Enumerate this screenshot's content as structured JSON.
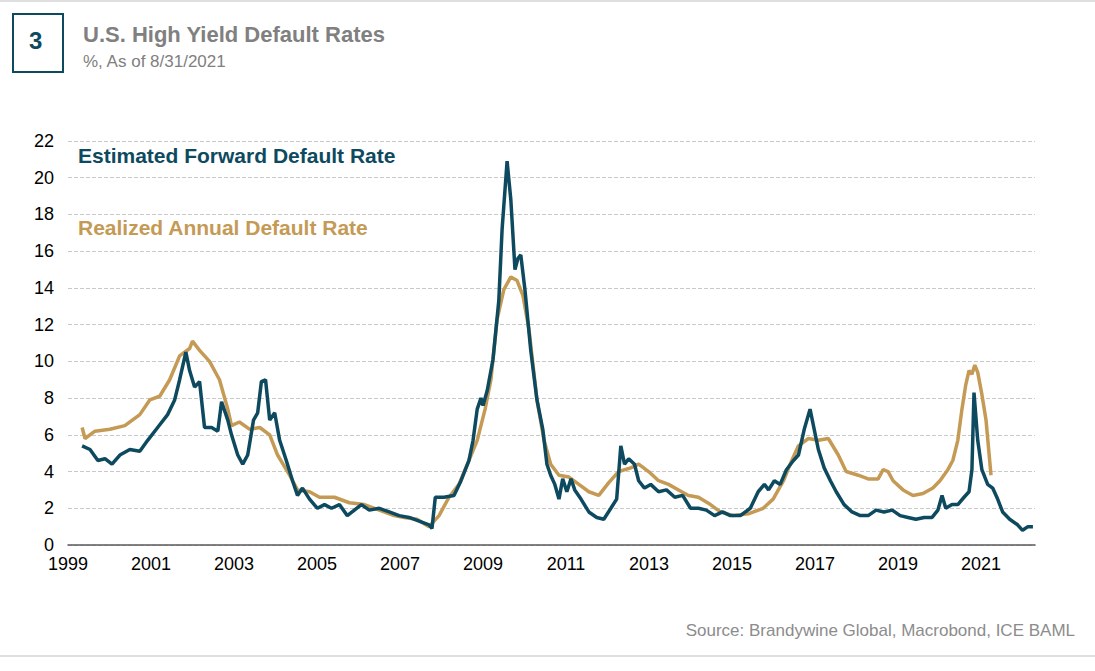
{
  "chart_data": {
    "type": "line",
    "badge": "3",
    "title": "U.S. High Yield Default Rates",
    "subtitle": "%, As of 8/31/2021",
    "source": "Source: Brandywine Global, Macrobond, ICE BAML",
    "legend": "upper left",
    "grid": true,
    "xlim": [
      1999,
      2022.3
    ],
    "xticks": [
      1999,
      2001,
      2003,
      2005,
      2007,
      2009,
      2011,
      2013,
      2015,
      2017,
      2019,
      2021
    ],
    "ylim": [
      0,
      22
    ],
    "yticks": [
      0,
      2,
      4,
      6,
      8,
      10,
      12,
      14,
      16,
      18,
      20,
      22
    ],
    "series": [
      {
        "name": "Estimated Forward Default Rate",
        "color": "#0e4a5f",
        "x": [
          1999.34,
          1999.53,
          1999.72,
          1999.89,
          2000.06,
          2000.25,
          2000.49,
          2000.73,
          2000.92,
          2001.16,
          2001.4,
          2001.57,
          2001.69,
          2001.84,
          2001.93,
          2002.05,
          2002.17,
          2002.29,
          2002.46,
          2002.61,
          2002.7,
          2002.85,
          2002.94,
          2003.09,
          2003.21,
          2003.33,
          2003.47,
          2003.57,
          2003.66,
          2003.76,
          2003.86,
          2003.98,
          2004.1,
          2004.26,
          2004.41,
          2004.53,
          2004.65,
          2004.82,
          2005.01,
          2005.18,
          2005.35,
          2005.54,
          2005.73,
          2005.9,
          2006.07,
          2006.26,
          2006.5,
          2006.74,
          2006.98,
          2007.22,
          2007.46,
          2007.7,
          2007.77,
          2007.85,
          2008.06,
          2008.3,
          2008.47,
          2008.66,
          2008.76,
          2008.86,
          2008.95,
          2009.0,
          2009.1,
          2009.24,
          2009.38,
          2009.46,
          2009.58,
          2009.67,
          2009.77,
          2009.84,
          2009.91,
          2010.01,
          2010.15,
          2010.3,
          2010.44,
          2010.54,
          2010.63,
          2010.73,
          2010.83,
          2010.92,
          2011.02,
          2011.12,
          2011.21,
          2011.36,
          2011.55,
          2011.74,
          2011.91,
          2012.08,
          2012.22,
          2012.32,
          2012.41,
          2012.51,
          2012.65,
          2012.75,
          2012.89,
          2013.04,
          2013.23,
          2013.42,
          2013.62,
          2013.81,
          2014.0,
          2014.19,
          2014.38,
          2014.58,
          2014.77,
          2014.96,
          2015.2,
          2015.44,
          2015.63,
          2015.78,
          2015.88,
          2016.02,
          2016.16,
          2016.31,
          2016.48,
          2016.6,
          2016.74,
          2016.88,
          2016.98,
          2017.08,
          2017.22,
          2017.37,
          2017.51,
          2017.7,
          2017.89,
          2018.09,
          2018.28,
          2018.47,
          2018.66,
          2018.86,
          2019.05,
          2019.24,
          2019.43,
          2019.63,
          2019.82,
          2019.96,
          2020.06,
          2020.15,
          2020.3,
          2020.44,
          2020.59,
          2020.71,
          2020.78,
          2020.83,
          2020.92,
          2021.02,
          2021.16,
          2021.28,
          2021.4,
          2021.52,
          2021.69,
          2021.88,
          2022.0,
          2022.13,
          2022.25
        ],
        "values": [
          5.4,
          5.2,
          4.6,
          4.7,
          4.4,
          4.9,
          5.2,
          5.1,
          5.7,
          6.4,
          7.1,
          7.9,
          9.0,
          10.5,
          9.5,
          8.6,
          8.9,
          6.4,
          6.4,
          6.2,
          7.8,
          6.8,
          6.0,
          4.9,
          4.4,
          4.9,
          6.8,
          7.2,
          8.9,
          9.0,
          6.8,
          7.2,
          5.7,
          4.6,
          3.5,
          2.7,
          3.1,
          2.5,
          2.0,
          2.2,
          2.0,
          2.2,
          1.6,
          1.9,
          2.2,
          1.9,
          2.0,
          1.8,
          1.6,
          1.5,
          1.3,
          1.1,
          0.9,
          2.6,
          2.6,
          2.7,
          3.5,
          4.6,
          5.7,
          7.4,
          8.0,
          7.6,
          8.4,
          10.1,
          13.3,
          17.2,
          20.9,
          18.8,
          15.0,
          15.6,
          15.8,
          13.9,
          10.6,
          7.9,
          6.3,
          4.4,
          3.8,
          3.3,
          2.5,
          3.6,
          2.9,
          3.6,
          3.0,
          2.5,
          1.8,
          1.5,
          1.4,
          2.0,
          2.5,
          5.4,
          4.4,
          4.7,
          4.4,
          3.5,
          3.1,
          3.3,
          2.9,
          3.0,
          2.6,
          2.7,
          2.0,
          2.0,
          1.9,
          1.6,
          1.8,
          1.6,
          1.6,
          2.0,
          2.9,
          3.3,
          3.0,
          3.5,
          3.3,
          4.1,
          4.6,
          4.9,
          6.3,
          7.4,
          6.3,
          5.2,
          4.2,
          3.5,
          2.9,
          2.2,
          1.8,
          1.6,
          1.6,
          1.9,
          1.8,
          1.9,
          1.6,
          1.5,
          1.4,
          1.5,
          1.5,
          1.9,
          2.7,
          2.0,
          2.2,
          2.2,
          2.6,
          2.9,
          4.1,
          8.3,
          5.7,
          4.1,
          3.3,
          3.1,
          2.5,
          1.8,
          1.4,
          1.1,
          0.8,
          1.0,
          1.0
        ]
      },
      {
        "name": "Realized Annual Default Rate",
        "color": "#c49a54",
        "x": [
          1999.34,
          1999.41,
          1999.65,
          2000.01,
          2000.37,
          2000.73,
          2000.97,
          2001.21,
          2001.45,
          2001.69,
          2001.93,
          2002.0,
          2002.17,
          2002.41,
          2002.65,
          2002.85,
          2002.94,
          2003.13,
          2003.38,
          2003.62,
          2003.86,
          2004.05,
          2004.34,
          2004.53,
          2004.82,
          2005.06,
          2005.42,
          2005.78,
          2006.14,
          2006.5,
          2006.86,
          2007.1,
          2007.41,
          2007.7,
          2007.94,
          2008.18,
          2008.42,
          2008.66,
          2008.86,
          2009.05,
          2009.19,
          2009.34,
          2009.5,
          2009.67,
          2009.82,
          2009.96,
          2010.11,
          2010.3,
          2010.47,
          2010.63,
          2010.83,
          2011.07,
          2011.31,
          2011.55,
          2011.79,
          2012.03,
          2012.27,
          2012.56,
          2012.75,
          2012.99,
          2013.23,
          2013.47,
          2013.71,
          2013.95,
          2014.19,
          2014.48,
          2014.72,
          2015.03,
          2015.39,
          2015.75,
          2015.99,
          2016.24,
          2016.4,
          2016.6,
          2016.84,
          2017.08,
          2017.32,
          2017.56,
          2017.75,
          2018.04,
          2018.28,
          2018.52,
          2018.64,
          2018.76,
          2018.88,
          2019.12,
          2019.36,
          2019.6,
          2019.84,
          2020.01,
          2020.2,
          2020.32,
          2020.44,
          2020.54,
          2020.63,
          2020.71,
          2020.78,
          2020.85,
          2020.92,
          2021.02,
          2021.12,
          2021.24
        ],
        "values": [
          6.4,
          5.8,
          6.2,
          6.3,
          6.5,
          7.1,
          7.9,
          8.1,
          9.0,
          10.3,
          10.7,
          11.1,
          10.6,
          10.0,
          9.0,
          7.4,
          6.5,
          6.7,
          6.3,
          6.4,
          6.0,
          4.9,
          3.8,
          3.0,
          2.9,
          2.6,
          2.6,
          2.3,
          2.2,
          1.9,
          1.6,
          1.5,
          1.4,
          1.0,
          1.6,
          2.6,
          3.3,
          4.6,
          5.7,
          7.4,
          9.0,
          12.3,
          13.9,
          14.6,
          14.4,
          13.6,
          11.7,
          7.9,
          5.7,
          4.4,
          3.8,
          3.7,
          3.3,
          2.9,
          2.7,
          3.4,
          4.0,
          4.2,
          4.4,
          4.0,
          3.5,
          3.3,
          3.0,
          2.7,
          2.6,
          2.2,
          1.8,
          1.6,
          1.7,
          2.0,
          2.5,
          3.5,
          4.4,
          5.4,
          5.8,
          5.7,
          5.8,
          4.9,
          4.0,
          3.8,
          3.6,
          3.6,
          4.1,
          4.0,
          3.5,
          3.0,
          2.7,
          2.8,
          3.1,
          3.5,
          4.1,
          4.6,
          5.7,
          7.4,
          8.7,
          9.5,
          9.3,
          9.8,
          9.4,
          8.2,
          6.8,
          3.8
        ]
      }
    ]
  }
}
